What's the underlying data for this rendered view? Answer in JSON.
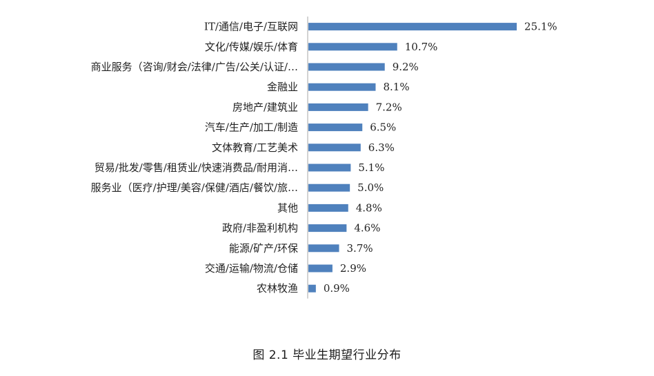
{
  "chart_data": {
    "type": "bar",
    "orientation": "horizontal",
    "caption": "图 2.1  毕业生期望行业分布",
    "categories": [
      "IT/通信/电子/互联网",
      "文化/传媒/娱乐/体育",
      "商业服务（咨询/财会/法律/广告/公关/认证/…",
      "金融业",
      "房地产/建筑业",
      "汽车/生产/加工/制造",
      "文体教育/工艺美术",
      "贸易/批发/零售/租赁业/快速消费品/耐用消…",
      "服务业（医疗/护理/美容/保健/酒店/餐饮/旅…",
      "其他",
      "政府/非盈利机构",
      "能源/矿产/环保",
      "交通/运输/物流/仓储",
      "农林牧渔"
    ],
    "values": [
      25.1,
      10.7,
      9.2,
      8.1,
      7.2,
      6.5,
      6.3,
      5.1,
      5.0,
      4.8,
      4.6,
      3.7,
      2.9,
      0.9
    ],
    "value_labels": [
      "25.1%",
      "10.7%",
      "9.2%",
      "8.1%",
      "7.2%",
      "6.5%",
      "6.3%",
      "5.1%",
      "5.0%",
      "4.8%",
      "4.6%",
      "3.7%",
      "2.9%",
      "0.9%"
    ],
    "bar_color": "#4f81bd",
    "axis_color": "#a6a6a6",
    "xlim": [
      0,
      30
    ],
    "grid": false,
    "legend": "none"
  }
}
